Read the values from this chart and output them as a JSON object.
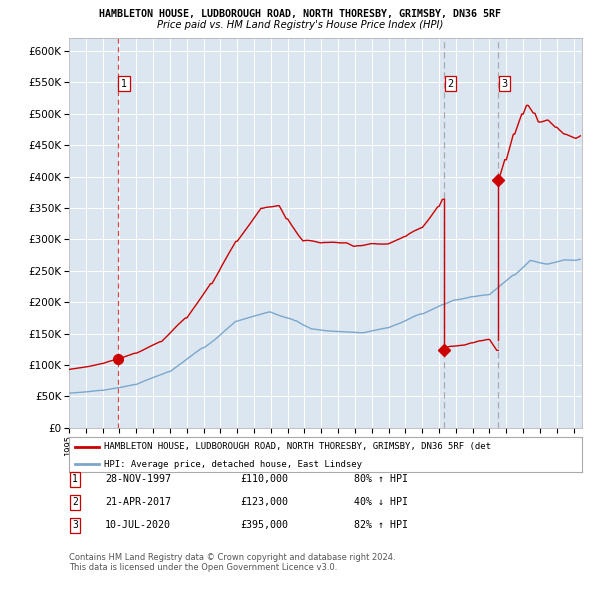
{
  "title1": "HAMBLETON HOUSE, LUDBOROUGH ROAD, NORTH THORESBY, GRIMSBY, DN36 5RF",
  "title2": "Price paid vs. HM Land Registry's House Price Index (HPI)",
  "ylim": [
    0,
    620000
  ],
  "yticks": [
    0,
    50000,
    100000,
    150000,
    200000,
    250000,
    300000,
    350000,
    400000,
    450000,
    500000,
    550000,
    600000
  ],
  "plot_bg": "#dce6f1",
  "grid_color": "#ffffff",
  "red_line_color": "#cc0000",
  "blue_line_color": "#7ba7cc",
  "sale_marker_color": "#cc0000",
  "vline_color_sale1": "#dd4444",
  "vline_color_sale23": "#aaaaaa",
  "sale1_x": 1997.91,
  "sale1_y": 110000,
  "sale2_x": 2017.31,
  "sale2_y": 123000,
  "sale3_x": 2020.53,
  "sale3_y": 395000,
  "legend_red_label": "HAMBLETON HOUSE, LUDBOROUGH ROAD, NORTH THORESBY, GRIMSBY, DN36 5RF (det",
  "legend_blue_label": "HPI: Average price, detached house, East Lindsey",
  "table_rows": [
    [
      "1",
      "28-NOV-1997",
      "£110,000",
      "80% ↑ HPI"
    ],
    [
      "2",
      "21-APR-2017",
      "£123,000",
      "40% ↓ HPI"
    ],
    [
      "3",
      "10-JUL-2020",
      "£395,000",
      "82% ↑ HPI"
    ]
  ],
  "footnote1": "Contains HM Land Registry data © Crown copyright and database right 2024.",
  "footnote2": "This data is licensed under the Open Government Licence v3.0.",
  "xmin": 1995.0,
  "xmax": 2025.5
}
